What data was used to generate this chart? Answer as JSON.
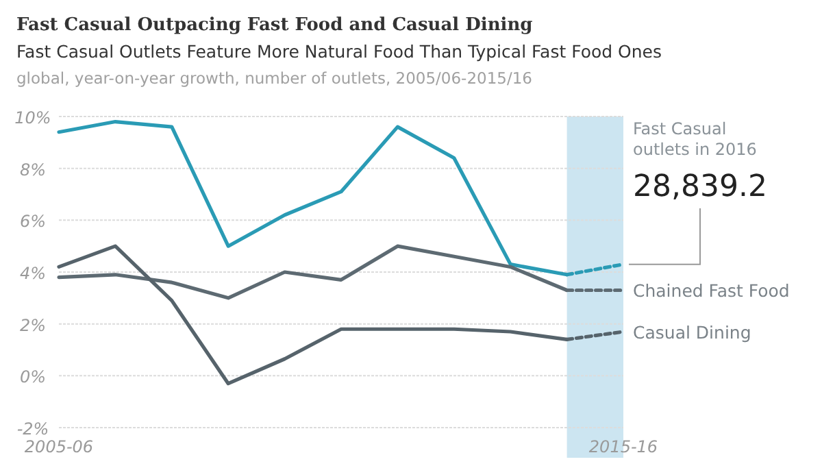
{
  "chart_data": {
    "type": "line",
    "title": "Fast Casual Outpacing Fast Food and Casual Dining",
    "subtitle": "Fast Casual Outlets Feature More Natural Food Than Typical Fast Food Ones",
    "annotations": [
      "global, year-on-year growth, number of outlets, 2005/06-2015/16",
      "Fast Casual outlets in 2016",
      {
        "text": "28,839.2",
        "x": "2015-16",
        "y": 4.3
      }
    ],
    "categories": [
      "2005-06",
      null,
      null,
      null,
      null,
      null,
      null,
      null,
      null,
      null,
      "2015-16"
    ],
    "ylim": [
      -2,
      10
    ],
    "yticks": [
      {
        "value": -2,
        "label": "-2%"
      },
      {
        "value": 0,
        "label": "0%"
      },
      {
        "value": 2,
        "label": "2%"
      },
      {
        "value": 4,
        "label": "4%"
      },
      {
        "value": 6,
        "label": "6%"
      },
      {
        "value": 8,
        "label": "8%"
      },
      {
        "value": 10,
        "label": "10%"
      }
    ],
    "grid": "y",
    "legend": false,
    "series": [
      {
        "color": "#2a9bb5",
        "values": [
          9.4,
          9.8,
          9.6,
          5.0,
          6.2,
          7.1,
          9.6,
          8.4,
          4.3,
          3.9,
          null
        ]
      },
      {
        "color": "#2a9bb5",
        "values": [
          null,
          null,
          null,
          null,
          null,
          null,
          null,
          null,
          null,
          3.9,
          4.3
        ],
        "line_style": "dashed"
      },
      {
        "name": "Chained Fast Food",
        "color": "#5d6a72",
        "values": [
          3.8,
          3.9,
          3.6,
          3.0,
          4.0,
          3.7,
          5.0,
          4.6,
          4.2,
          3.3,
          null
        ]
      },
      {
        "color": "#5d6a72",
        "values": [
          null,
          null,
          null,
          null,
          null,
          null,
          null,
          null,
          null,
          3.3,
          3.3
        ],
        "line_style": "dashed"
      },
      {
        "name": "Casual Dining",
        "color": "#56636b",
        "values": [
          4.2,
          5.0,
          2.9,
          -0.3,
          0.65,
          1.8,
          1.8,
          1.8,
          1.7,
          1.4,
          null
        ]
      },
      {
        "color": "#56636b",
        "values": [
          null,
          null,
          null,
          null,
          null,
          null,
          null,
          null,
          null,
          1.4,
          1.7
        ],
        "line_style": "dashed"
      }
    ]
  }
}
